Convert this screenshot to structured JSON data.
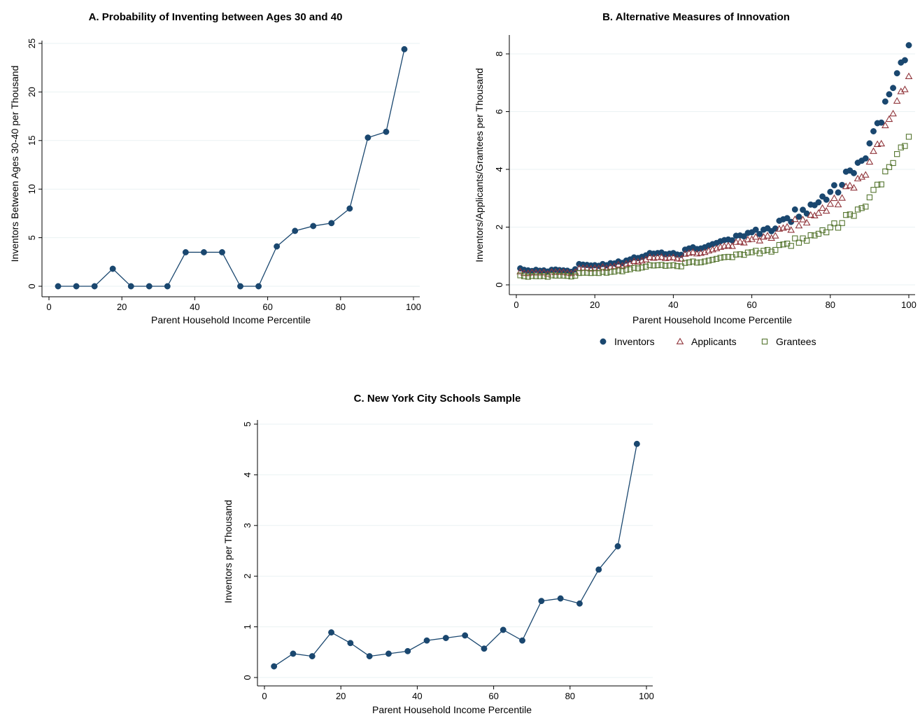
{
  "colors": {
    "navy": "#1a476f",
    "red": "#90353b",
    "green": "#55752f",
    "grid": "#eaf2f3",
    "axis": "#000000"
  },
  "chart_data": [
    {
      "id": "A",
      "type": "line",
      "title": "A. Probability of Inventing between Ages 30 and 40",
      "xlabel": "Parent Household Income Percentile",
      "ylabel": "Inventors Between Ages 30-40 per Thousand",
      "xlim": [
        0,
        100
      ],
      "ylim": [
        0,
        25
      ],
      "xticks": [
        0,
        20,
        40,
        60,
        80,
        100
      ],
      "yticks": [
        0,
        5,
        10,
        15,
        20,
        25
      ],
      "grid": true,
      "series": [
        {
          "color": "#1a476f",
          "marker": "filled-circle",
          "x": [
            2.5,
            7.5,
            12.5,
            17.5,
            22.5,
            27.5,
            32.5,
            37.5,
            42.5,
            47.5,
            52.5,
            57.5,
            62.5,
            67.5,
            72.5,
            77.5,
            82.5,
            87.5,
            92.5,
            97.5
          ],
          "y": [
            0,
            0,
            0,
            1.8,
            0,
            0,
            0,
            3.5,
            3.5,
            3.5,
            0,
            0,
            4.1,
            5.7,
            6.2,
            6.5,
            8.0,
            15.3,
            15.9,
            24.4
          ]
        }
      ]
    },
    {
      "id": "B",
      "type": "scatter",
      "title": "B. Alternative Measures of Innovation",
      "xlabel": "Parent Household Income Percentile",
      "ylabel": "Inventors/Applicants/Grantees per Thousand",
      "xlim": [
        0,
        100
      ],
      "ylim": [
        0,
        8
      ],
      "xticks": [
        0,
        20,
        40,
        60,
        80,
        100
      ],
      "yticks": [
        0,
        2,
        4,
        6,
        8
      ],
      "grid": true,
      "legend_position": "bottom",
      "x": [
        1,
        2,
        3,
        4,
        5,
        6,
        7,
        8,
        9,
        10,
        11,
        12,
        13,
        14,
        15,
        16,
        17,
        18,
        19,
        20,
        21,
        22,
        23,
        24,
        25,
        26,
        27,
        28,
        29,
        30,
        31,
        32,
        33,
        34,
        35,
        36,
        37,
        38,
        39,
        40,
        41,
        42,
        43,
        44,
        45,
        46,
        47,
        48,
        49,
        50,
        51,
        52,
        53,
        54,
        55,
        56,
        57,
        58,
        59,
        60,
        61,
        62,
        63,
        64,
        65,
        66,
        67,
        68,
        69,
        70,
        71,
        72,
        73,
        74,
        75,
        76,
        77,
        78,
        79,
        80,
        81,
        82,
        83,
        84,
        85,
        86,
        87,
        88,
        89,
        90,
        91,
        92,
        93,
        94,
        95,
        96,
        97,
        98,
        99,
        100
      ],
      "series": [
        {
          "name": "Inventors",
          "color": "#1a476f",
          "marker": "filled-circle",
          "y": [
            0.57,
            0.52,
            0.5,
            0.48,
            0.52,
            0.49,
            0.5,
            0.46,
            0.52,
            0.53,
            0.51,
            0.5,
            0.49,
            0.45,
            0.54,
            0.72,
            0.7,
            0.69,
            0.67,
            0.68,
            0.66,
            0.72,
            0.68,
            0.75,
            0.74,
            0.81,
            0.76,
            0.84,
            0.88,
            0.95,
            0.93,
            0.97,
            1.02,
            1.1,
            1.08,
            1.1,
            1.12,
            1.06,
            1.08,
            1.1,
            1.05,
            1.04,
            1.22,
            1.26,
            1.3,
            1.24,
            1.26,
            1.3,
            1.36,
            1.41,
            1.45,
            1.51,
            1.55,
            1.57,
            1.54,
            1.7,
            1.71,
            1.68,
            1.8,
            1.82,
            1.91,
            1.76,
            1.91,
            1.96,
            1.86,
            1.95,
            2.22,
            2.27,
            2.31,
            2.18,
            2.61,
            2.36,
            2.6,
            2.47,
            2.78,
            2.76,
            2.86,
            3.06,
            2.95,
            3.22,
            3.45,
            3.2,
            3.46,
            3.92,
            3.96,
            3.87,
            4.23,
            4.3,
            4.38,
            4.9,
            5.32,
            5.6,
            5.62,
            6.35,
            6.6,
            6.82,
            7.33,
            7.7,
            7.78,
            8.3
          ]
        },
        {
          "name": "Applicants",
          "color": "#90353b",
          "marker": "hollow-triangle",
          "y": [
            0.46,
            0.41,
            0.4,
            0.43,
            0.42,
            0.42,
            0.43,
            0.38,
            0.45,
            0.44,
            0.45,
            0.44,
            0.42,
            0.4,
            0.44,
            0.57,
            0.58,
            0.58,
            0.56,
            0.58,
            0.57,
            0.62,
            0.58,
            0.62,
            0.64,
            0.7,
            0.66,
            0.73,
            0.75,
            0.82,
            0.8,
            0.84,
            0.88,
            0.96,
            0.93,
            0.95,
            0.96,
            0.92,
            0.94,
            0.95,
            0.91,
            0.9,
            1.07,
            1.1,
            1.13,
            1.08,
            1.1,
            1.13,
            1.18,
            1.22,
            1.26,
            1.31,
            1.34,
            1.36,
            1.34,
            1.48,
            1.49,
            1.46,
            1.57,
            1.58,
            1.66,
            1.53,
            1.66,
            1.7,
            1.62,
            1.7,
            1.94,
            1.97,
            2.01,
            1.9,
            2.27,
            2.05,
            2.26,
            2.15,
            2.42,
            2.4,
            2.49,
            2.66,
            2.56,
            2.8,
            3.0,
            2.78,
            3.01,
            3.41,
            3.44,
            3.36,
            3.68,
            3.74,
            3.81,
            4.26,
            4.63,
            4.87,
            4.89,
            5.52,
            5.74,
            5.93,
            6.37,
            6.7,
            6.77,
            7.22
          ]
        },
        {
          "name": "Grantees",
          "color": "#55752f",
          "marker": "hollow-square",
          "y": [
            0.33,
            0.3,
            0.28,
            0.31,
            0.3,
            0.3,
            0.31,
            0.28,
            0.33,
            0.32,
            0.32,
            0.32,
            0.31,
            0.29,
            0.32,
            0.41,
            0.42,
            0.42,
            0.41,
            0.42,
            0.41,
            0.45,
            0.42,
            0.45,
            0.46,
            0.5,
            0.47,
            0.52,
            0.54,
            0.59,
            0.57,
            0.6,
            0.63,
            0.68,
            0.67,
            0.68,
            0.69,
            0.66,
            0.67,
            0.68,
            0.65,
            0.64,
            0.76,
            0.78,
            0.81,
            0.77,
            0.78,
            0.81,
            0.84,
            0.87,
            0.9,
            0.94,
            0.96,
            0.97,
            0.96,
            1.05,
            1.06,
            1.04,
            1.12,
            1.13,
            1.18,
            1.09,
            1.18,
            1.21,
            1.15,
            1.21,
            1.38,
            1.4,
            1.43,
            1.35,
            1.61,
            1.46,
            1.61,
            1.53,
            1.72,
            1.71,
            1.77,
            1.89,
            1.82,
            1.99,
            2.13,
            1.98,
            2.14,
            2.42,
            2.44,
            2.39,
            2.61,
            2.66,
            2.71,
            3.03,
            3.29,
            3.47,
            3.48,
            3.93,
            4.08,
            4.22,
            4.53,
            4.76,
            4.81,
            5.13
          ]
        }
      ]
    },
    {
      "id": "C",
      "type": "line",
      "title": "C. New York City Schools Sample",
      "xlabel": "Parent Household Income Percentile",
      "ylabel": "Inventors per Thousand",
      "xlim": [
        0,
        100
      ],
      "ylim": [
        0,
        5
      ],
      "xticks": [
        0,
        20,
        40,
        60,
        80,
        100
      ],
      "yticks": [
        0,
        1,
        2,
        3,
        4,
        5
      ],
      "grid": true,
      "series": [
        {
          "color": "#1a476f",
          "marker": "filled-circle",
          "x": [
            2.5,
            7.5,
            12.5,
            17.5,
            22.5,
            27.5,
            32.5,
            37.5,
            42.5,
            47.5,
            52.5,
            57.5,
            62.5,
            67.5,
            72.5,
            77.5,
            82.5,
            87.5,
            92.5,
            97.5
          ],
          "y": [
            0.22,
            0.47,
            0.42,
            0.89,
            0.68,
            0.42,
            0.47,
            0.52,
            0.73,
            0.78,
            0.83,
            0.57,
            0.94,
            0.73,
            1.51,
            1.56,
            1.46,
            2.13,
            2.59,
            4.61
          ]
        }
      ]
    }
  ]
}
